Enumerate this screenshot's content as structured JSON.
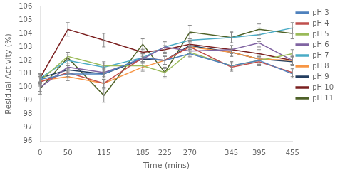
{
  "chart_data": {
    "type": "line",
    "x": [
      0,
      50,
      115,
      185,
      225,
      270,
      345,
      395,
      455
    ],
    "series": [
      {
        "name": "pH 3",
        "color": "#4F81BD",
        "values": [
          100.6,
          101.0,
          101.0,
          102.2,
          102.0,
          102.5,
          101.6,
          102.0,
          101.0
        ],
        "errors": [
          0.3,
          0.3,
          0.3,
          0.3,
          0.3,
          0.3,
          0.3,
          0.3,
          0.3
        ]
      },
      {
        "name": "pH 4",
        "color": "#C0504D",
        "values": [
          100.4,
          101.1,
          100.3,
          102.2,
          102.0,
          103.0,
          101.5,
          101.9,
          101.1
        ],
        "errors": [
          0.3,
          0.3,
          0.3,
          0.3,
          0.3,
          0.3,
          0.3,
          0.3,
          0.3
        ]
      },
      {
        "name": "pH 5",
        "color": "#9BBB59",
        "values": [
          100.5,
          102.3,
          101.6,
          101.6,
          101.1,
          102.6,
          101.6,
          102.0,
          102.5
        ],
        "errors": [
          0.3,
          0.3,
          0.3,
          0.3,
          0.3,
          0.3,
          0.3,
          0.3,
          0.3
        ]
      },
      {
        "name": "pH 6",
        "color": "#8064A2",
        "values": [
          100.0,
          101.5,
          101.1,
          102.1,
          103.0,
          102.7,
          102.8,
          103.3,
          102.0
        ],
        "errors": [
          0.3,
          0.3,
          0.3,
          0.3,
          0.3,
          0.3,
          0.3,
          0.3,
          0.3
        ]
      },
      {
        "name": "pH 7",
        "color": "#4BACC6",
        "values": [
          100.7,
          102.0,
          101.5,
          102.2,
          103.0,
          103.5,
          103.7,
          103.9,
          104.4
        ],
        "errors": [
          0.3,
          0.4,
          0.3,
          0.3,
          0.4,
          0.5,
          0.4,
          0.5,
          0.4
        ]
      },
      {
        "name": "pH 8",
        "color": "#F79646",
        "values": [
          100.5,
          100.8,
          100.3,
          101.5,
          102.0,
          103.0,
          102.6,
          102.1,
          102.0
        ],
        "errors": [
          0.3,
          0.3,
          0.3,
          0.3,
          0.3,
          0.3,
          0.3,
          0.3,
          0.3
        ]
      },
      {
        "name": "pH 9",
        "color": "#243F60",
        "values": [
          100.7,
          101.3,
          101.0,
          102.1,
          102.0,
          103.1,
          102.6,
          102.1,
          101.9
        ],
        "errors": [
          0.3,
          0.3,
          0.3,
          0.3,
          0.3,
          0.3,
          0.3,
          0.3,
          0.3
        ]
      },
      {
        "name": "pH 10",
        "color": "#7B2020",
        "values": [
          100.7,
          104.3,
          103.5,
          102.6,
          102.8,
          103.2,
          102.8,
          102.5,
          102.0
        ],
        "errors": [
          0.3,
          0.5,
          0.5,
          0.3,
          0.3,
          0.3,
          0.3,
          0.3,
          0.3
        ]
      },
      {
        "name": "pH 11",
        "color": "#4F6228",
        "values": [
          99.9,
          102.2,
          99.4,
          103.2,
          101.1,
          104.1,
          103.7,
          104.3,
          104.0
        ],
        "errors": [
          0.4,
          0.4,
          0.5,
          0.4,
          0.4,
          0.5,
          0.4,
          0.4,
          0.4
        ]
      }
    ],
    "xlabel": "Time (mins)",
    "ylabel": "Residual Activity (%)",
    "xlim": [
      0,
      455
    ],
    "xticks": [
      0,
      50,
      115,
      185,
      225,
      270,
      345,
      395,
      455
    ],
    "ylim": [
      96,
      106
    ],
    "yticks": [
      96,
      97,
      98,
      99,
      100,
      101,
      102,
      103,
      104,
      105,
      106
    ],
    "grid": false,
    "legend": "right"
  }
}
